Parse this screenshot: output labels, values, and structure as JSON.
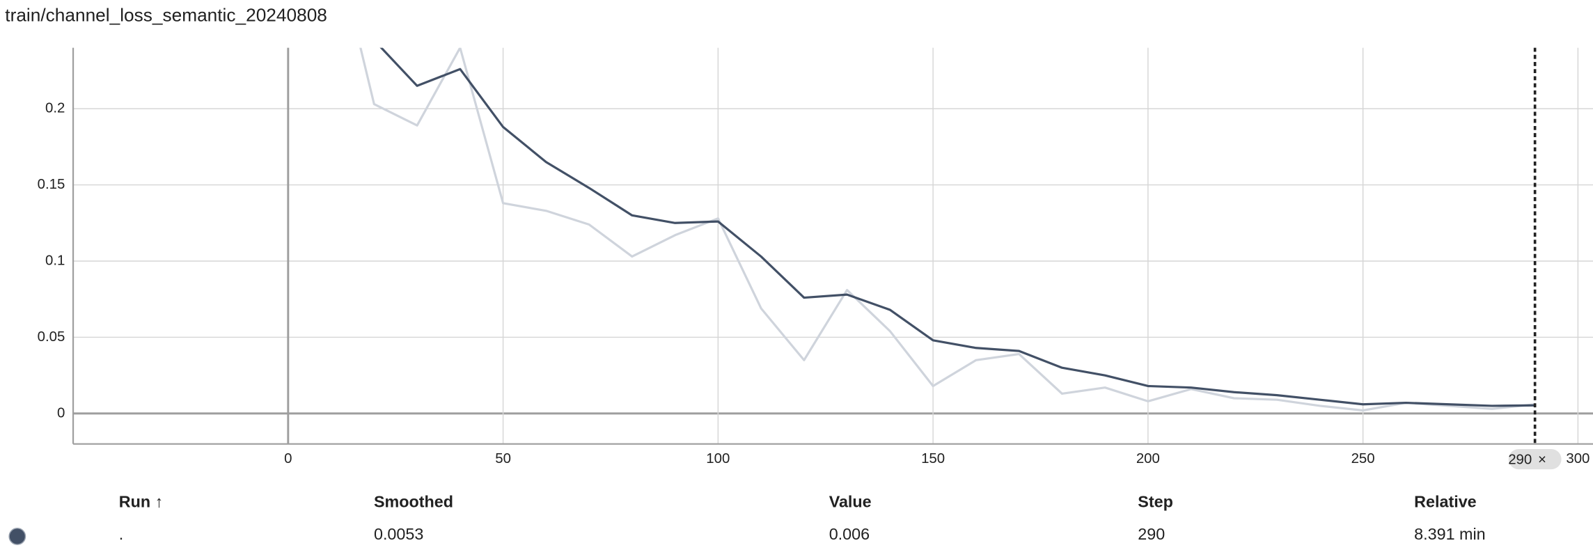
{
  "chart_data": {
    "type": "line",
    "title": "train/channel_loss_semantic_20240808",
    "x": [
      10,
      20,
      30,
      40,
      50,
      60,
      70,
      80,
      90,
      100,
      110,
      120,
      130,
      140,
      150,
      160,
      170,
      180,
      190,
      200,
      210,
      220,
      230,
      240,
      250,
      260,
      270,
      280,
      290
    ],
    "series": [
      {
        "color": "#cfd4dc",
        "values": [
          0.32,
          0.203,
          0.189,
          0.24,
          0.138,
          0.133,
          0.124,
          0.103,
          0.117,
          0.128,
          0.069,
          0.035,
          0.081,
          0.054,
          0.018,
          0.035,
          0.039,
          0.013,
          0.017,
          0.008,
          0.016,
          0.01,
          0.009,
          0.005,
          0.002,
          0.007,
          0.005,
          0.003,
          0.006
        ]
      },
      {
        "color": "#425066",
        "values": [
          0.27,
          0.245,
          0.215,
          0.226,
          0.188,
          0.165,
          0.148,
          0.13,
          0.125,
          0.126,
          0.103,
          0.076,
          0.078,
          0.068,
          0.048,
          0.043,
          0.041,
          0.03,
          0.025,
          0.018,
          0.017,
          0.014,
          0.012,
          0.009,
          0.006,
          0.007,
          0.006,
          0.005,
          0.0053
        ]
      }
    ],
    "xlim": [
      -50,
      303.5
    ],
    "xticks": [
      0,
      50,
      100,
      150,
      200,
      250,
      300
    ],
    "ylim": [
      -0.02,
      0.24
    ],
    "yticks": [
      0,
      0.05,
      0.1,
      0.15,
      0.2
    ],
    "grid": true,
    "cursor_step": 290,
    "cursor_close": "×"
  },
  "table": {
    "headers": [
      "Run ↑",
      "Smoothed",
      "Value",
      "Step",
      "Relative"
    ],
    "rows": [
      [
        ".",
        "0.0053",
        "0.006",
        "290",
        "8.391 min"
      ]
    ],
    "run_color": "#425066"
  }
}
